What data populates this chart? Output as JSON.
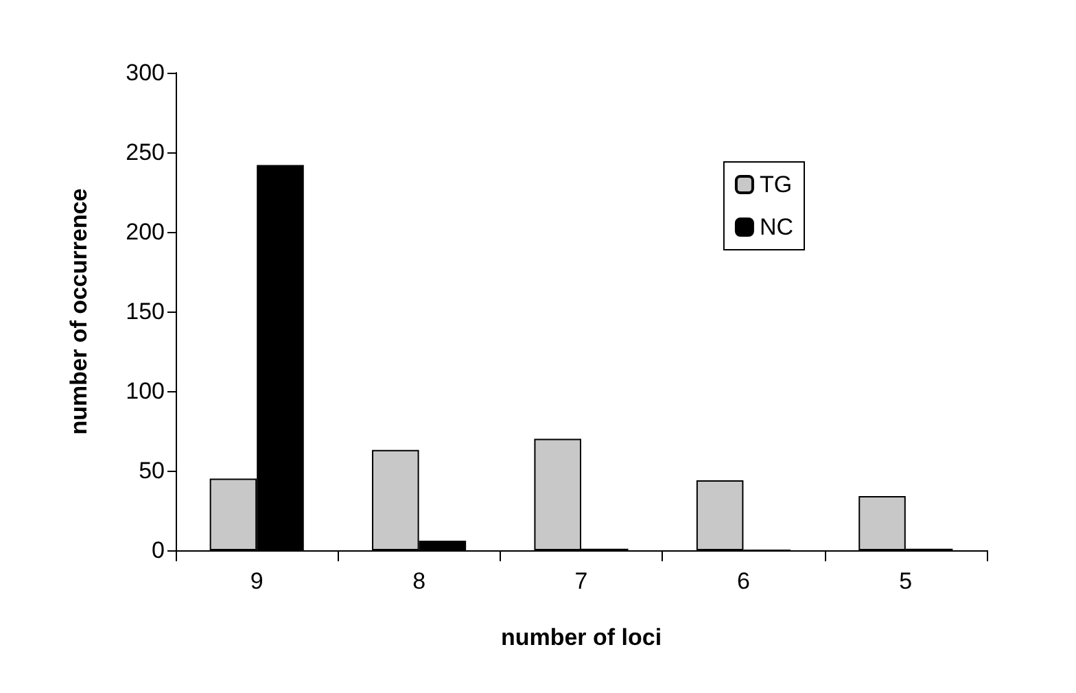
{
  "chart_data": {
    "type": "bar",
    "xlabel": "number of loci",
    "ylabel": "number of occurrence",
    "categories": [
      "9",
      "8",
      "7",
      "6",
      "5"
    ],
    "series": [
      {
        "name": "TG",
        "color": "#c8c8c8",
        "values": [
          45,
          63,
          70,
          44,
          34
        ]
      },
      {
        "name": "NC",
        "color": "#000000",
        "values": [
          242,
          6,
          1,
          0,
          1
        ]
      }
    ],
    "ylim": [
      0,
      300
    ],
    "yticks": [
      0,
      50,
      100,
      150,
      200,
      250,
      300
    ],
    "grid": false,
    "legend": "top right"
  }
}
